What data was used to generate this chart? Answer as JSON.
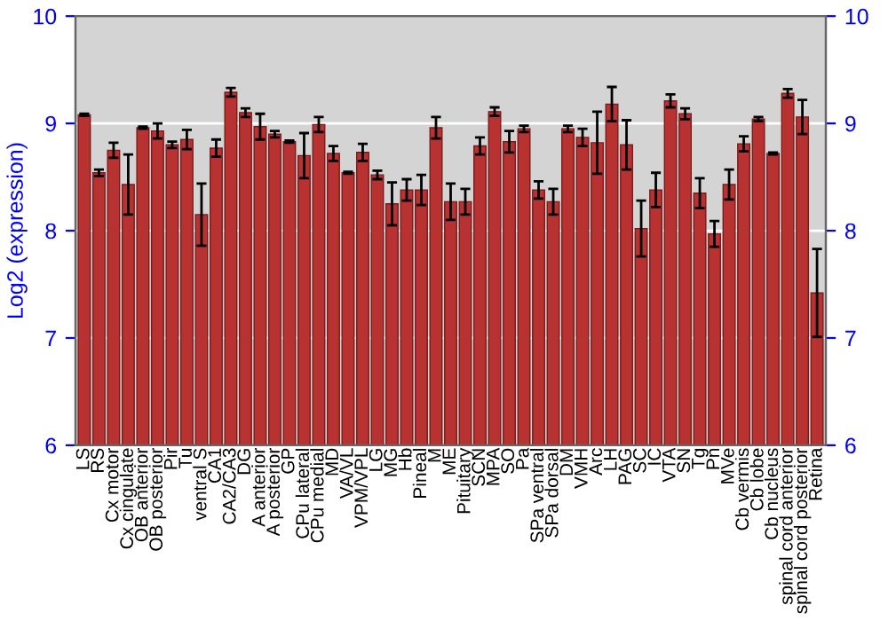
{
  "chart_data": {
    "type": "bar",
    "ylabel": "Log2 (expression)",
    "categories": [
      "LS",
      "RS",
      "Cx motor",
      "Cx cingulate",
      "OB anterior",
      "OB posterior",
      "Pir",
      "Tu",
      "ventral S",
      "CA1",
      "CA2/CA3",
      "DG",
      "A anterior",
      "A posterior",
      "GP",
      "CPu lateral",
      "CPu medial",
      "MD",
      "VA/VL",
      "VPM/VPL",
      "LG",
      "MG",
      "Hb",
      "Pineal",
      "M",
      "ME",
      "Pituitary",
      "SCN",
      "MPA",
      "SO",
      "Pa",
      "SPa ventral",
      "SPa dorsal",
      "DM",
      "VMH",
      "Arc",
      "LH",
      "PAG",
      "SC",
      "IC",
      "VTA",
      "SN",
      "Tg",
      "Pn",
      "MVe",
      "Cb vermis",
      "Cb lobe",
      "Cb nucleus",
      "spinal cord anterior",
      "spinal cord posterior",
      "Retina"
    ],
    "values": [
      9.08,
      8.54,
      8.75,
      8.43,
      8.96,
      8.93,
      8.8,
      8.85,
      8.15,
      8.77,
      9.29,
      9.1,
      8.97,
      8.9,
      8.83,
      8.7,
      8.99,
      8.72,
      8.54,
      8.73,
      8.52,
      8.25,
      8.38,
      8.38,
      8.96,
      8.27,
      8.27,
      8.79,
      9.11,
      8.83,
      8.95,
      8.38,
      8.27,
      8.95,
      8.87,
      8.82,
      9.18,
      8.8,
      8.02,
      8.38,
      9.21,
      9.09,
      8.35,
      7.97,
      8.43,
      8.81,
      9.04,
      8.72,
      9.28,
      9.06,
      7.42
    ],
    "errors": [
      0.01,
      0.03,
      0.07,
      0.28,
      0.01,
      0.07,
      0.03,
      0.09,
      0.29,
      0.08,
      0.04,
      0.04,
      0.12,
      0.03,
      0.01,
      0.21,
      0.07,
      0.07,
      0.01,
      0.08,
      0.04,
      0.2,
      0.1,
      0.14,
      0.1,
      0.17,
      0.12,
      0.08,
      0.04,
      0.1,
      0.03,
      0.08,
      0.12,
      0.03,
      0.08,
      0.29,
      0.16,
      0.23,
      0.26,
      0.16,
      0.06,
      0.05,
      0.14,
      0.12,
      0.14,
      0.07,
      0.02,
      0.01,
      0.04,
      0.16,
      0.41
    ],
    "color": "#b83232",
    "ylim": [
      6,
      10
    ],
    "yticks": [
      6,
      7,
      8,
      9,
      10
    ],
    "y2lim": [
      6,
      10
    ],
    "y2ticks": [
      6,
      7,
      8,
      9,
      10
    ],
    "grid": "y"
  }
}
